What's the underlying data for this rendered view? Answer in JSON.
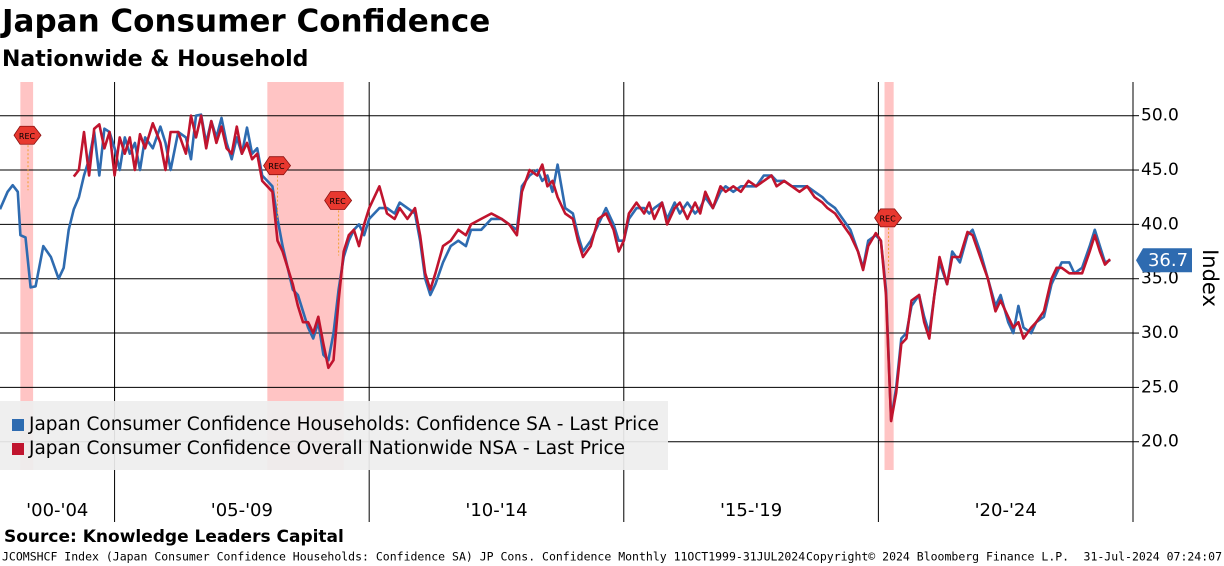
{
  "chart_data": {
    "type": "line",
    "title": "Japan Consumer Confidence",
    "subtitle": "Nationwide & Household",
    "y_axis_label": "Index",
    "source": "Source: Knowledge Leaders Capital",
    "footer_left": "JCOMSHCF Index (Japan Consumer Confidence Households: Confidence SA) JP Cons. Confidence  Monthly 11OCT1999-31JUL2024",
    "footer_center": "Copyright© 2024 Bloomberg Finance L.P.",
    "footer_right": "31-Jul-2024 07:24:07",
    "xlim": [
      2002.75,
      2025
    ],
    "ylim": [
      17.4,
      53.1
    ],
    "yticks": [
      {
        "value": 20,
        "label": "20.0"
      },
      {
        "value": 25,
        "label": "25.0"
      },
      {
        "value": 30,
        "label": "30.0"
      },
      {
        "value": 35,
        "label": "35.0"
      },
      {
        "value": 40,
        "label": "40.0"
      },
      {
        "value": 45,
        "label": "45.0"
      },
      {
        "value": 50,
        "label": "50.0"
      }
    ],
    "grid": true,
    "legend": "lower left",
    "periods": [
      {
        "label": "'00-'04",
        "start": 2000,
        "end": 2005
      },
      {
        "label": "'05-'09",
        "start": 2005,
        "end": 2010
      },
      {
        "label": "'10-'14",
        "start": 2010,
        "end": 2015
      },
      {
        "label": "'15-'19",
        "start": 2015,
        "end": 2020
      },
      {
        "label": "'20-'24",
        "start": 2020,
        "end": 2025
      }
    ],
    "recessions": [
      [
        2003.15,
        2003.4
      ],
      [
        2008.0,
        2009.5
      ],
      [
        2020.12,
        2020.3
      ]
    ],
    "recession_color": "#ffb0b0",
    "rec_label": "REC",
    "rec_flags": [
      {
        "x": 2003.3,
        "y": 48.2
      },
      {
        "x": 2008.2,
        "y": 45.4
      },
      {
        "x": 2009.4,
        "y": 42.2
      },
      {
        "x": 2020.2,
        "y": 40.6
      }
    ],
    "x": [
      2002.75,
      2002.9,
      2003.0,
      2003.1,
      2003.15,
      2003.25,
      2003.35,
      2003.45,
      2003.6,
      2003.75,
      2003.9,
      2004.0,
      2004.1,
      2004.2,
      2004.3,
      2004.4,
      2004.5,
      2004.6,
      2004.7,
      2004.8,
      2004.9,
      2005.0,
      2005.1,
      2005.2,
      2005.3,
      2005.4,
      2005.5,
      2005.6,
      2005.75,
      2005.9,
      2006.0,
      2006.1,
      2006.25,
      2006.4,
      2006.5,
      2006.6,
      2006.7,
      2006.8,
      2006.9,
      2007.0,
      2007.1,
      2007.2,
      2007.3,
      2007.4,
      2007.5,
      2007.6,
      2007.7,
      2007.8,
      2007.9,
      2008.0,
      2008.1,
      2008.2,
      2008.3,
      2008.4,
      2008.5,
      2008.6,
      2008.7,
      2008.8,
      2008.9,
      2009.0,
      2009.1,
      2009.2,
      2009.3,
      2009.4,
      2009.5,
      2009.6,
      2009.7,
      2009.8,
      2009.9,
      2010.0,
      2010.2,
      2010.35,
      2010.5,
      2010.6,
      2010.75,
      2010.9,
      2011.0,
      2011.1,
      2011.2,
      2011.3,
      2011.45,
      2011.6,
      2011.75,
      2011.9,
      2012.0,
      2012.2,
      2012.4,
      2012.6,
      2012.75,
      2012.9,
      2013.0,
      2013.15,
      2013.3,
      2013.4,
      2013.5,
      2013.6,
      2013.7,
      2013.85,
      2014.0,
      2014.1,
      2014.2,
      2014.35,
      2014.5,
      2014.65,
      2014.8,
      2014.9,
      2015.0,
      2015.1,
      2015.25,
      2015.4,
      2015.5,
      2015.6,
      2015.75,
      2015.85,
      2016.0,
      2016.1,
      2016.25,
      2016.4,
      2016.5,
      2016.6,
      2016.75,
      2016.9,
      2017.0,
      2017.15,
      2017.3,
      2017.45,
      2017.6,
      2017.75,
      2017.9,
      2018.0,
      2018.15,
      2018.3,
      2018.45,
      2018.6,
      2018.75,
      2018.9,
      2019.0,
      2019.15,
      2019.3,
      2019.45,
      2019.6,
      2019.7,
      2019.8,
      2019.95,
      2020.05,
      2020.15,
      2020.25,
      2020.35,
      2020.45,
      2020.55,
      2020.65,
      2020.8,
      2020.9,
      2021.0,
      2021.1,
      2021.2,
      2021.35,
      2021.45,
      2021.6,
      2021.75,
      2021.85,
      2022.0,
      2022.15,
      2022.3,
      2022.4,
      2022.55,
      2022.65,
      2022.75,
      2022.85,
      2023.0,
      2023.1,
      2023.25,
      2023.4,
      2023.5,
      2023.6,
      2023.75,
      2023.85,
      2024.0,
      2024.15,
      2024.25,
      2024.35,
      2024.45,
      2024.55
    ],
    "series": [
      {
        "name": "Japan Consumer Confidence Households: Confidence SA - Last Price",
        "color": "#2e6bb0",
        "values": [
          41.4,
          43.0,
          43.6,
          43.0,
          39.0,
          38.8,
          34.2,
          34.3,
          38.0,
          37.0,
          35.0,
          36.0,
          39.5,
          41.4,
          42.5,
          44.5,
          46.0,
          48.5,
          44.5,
          48.8,
          48.5,
          47.0,
          45.0,
          48.0,
          46.5,
          47.5,
          45.0,
          48.0,
          47.0,
          49.0,
          47.5,
          45.0,
          48.5,
          48.0,
          46.0,
          50.0,
          50.1,
          47.5,
          49.5,
          48.0,
          49.8,
          47.5,
          46.0,
          48.0,
          46.5,
          48.9,
          46.5,
          47.0,
          44.5,
          44.0,
          43.5,
          40.5,
          38.0,
          36.0,
          34.0,
          33.5,
          32.0,
          30.5,
          29.5,
          31.0,
          28.0,
          27.5,
          30.0,
          34.0,
          37.0,
          38.5,
          39.5,
          40.0,
          39.0,
          40.5,
          41.5,
          41.5,
          41.0,
          42.0,
          41.5,
          41.0,
          38.5,
          35.0,
          33.5,
          34.5,
          36.5,
          38.0,
          38.5,
          38.0,
          39.5,
          39.5,
          40.5,
          40.5,
          40.0,
          39.5,
          43.5,
          44.5,
          45.0,
          44.0,
          44.5,
          43.0,
          45.5,
          41.5,
          41.0,
          39.0,
          37.5,
          38.5,
          40.0,
          41.5,
          40.0,
          38.5,
          38.5,
          40.5,
          41.5,
          41.5,
          41.0,
          41.5,
          42.0,
          40.5,
          42.0,
          41.0,
          42.0,
          41.0,
          41.5,
          42.5,
          41.5,
          43.0,
          43.5,
          43.0,
          43.5,
          43.5,
          43.5,
          44.5,
          44.5,
          44.0,
          44.0,
          43.5,
          43.5,
          43.5,
          43.0,
          42.5,
          42.0,
          41.5,
          40.5,
          39.5,
          37.5,
          36.0,
          38.5,
          39.0,
          38.5,
          34.0,
          22.0,
          25.0,
          29.5,
          30.0,
          32.5,
          33.5,
          31.5,
          30.0,
          33.5,
          36.5,
          34.5,
          37.5,
          36.5,
          39.0,
          39.5,
          37.5,
          35.0,
          32.5,
          33.5,
          31.0,
          30.0,
          32.5,
          30.5,
          30.0,
          31.0,
          31.5,
          34.5,
          35.5,
          36.5,
          36.5,
          35.5,
          36.0,
          38.0,
          39.5,
          38.0,
          36.5,
          36.7
        ]
      },
      {
        "name": "Japan Consumer Confidence Overall Nationwide NSA - Last Price",
        "color": "#c0142e",
        "values": [
          null,
          null,
          null,
          null,
          null,
          null,
          null,
          null,
          null,
          null,
          null,
          null,
          null,
          44.4,
          45.0,
          48.5,
          44.5,
          48.8,
          49.2,
          47.0,
          48.5,
          44.5,
          48.0,
          46.5,
          48.0,
          45.0,
          48.3,
          47.0,
          49.3,
          47.5,
          45.0,
          48.5,
          48.5,
          46.5,
          50.0,
          48.0,
          50.0,
          47.0,
          49.5,
          47.5,
          49.0,
          47.0,
          46.5,
          49.0,
          46.5,
          47.5,
          46.0,
          46.5,
          44.0,
          43.5,
          43.0,
          38.5,
          37.5,
          36.0,
          34.5,
          32.5,
          31.0,
          31.0,
          30.0,
          31.5,
          29.0,
          26.8,
          27.5,
          33.0,
          37.5,
          39.0,
          39.5,
          38.0,
          40.0,
          41.5,
          43.5,
          41.0,
          40.5,
          41.5,
          40.5,
          41.5,
          39.0,
          35.5,
          34.0,
          35.5,
          38.0,
          38.5,
          39.5,
          39.0,
          40.0,
          40.5,
          41.0,
          40.5,
          40.0,
          39.0,
          43.0,
          45.0,
          44.5,
          45.5,
          43.5,
          44.0,
          42.5,
          41.0,
          40.5,
          38.5,
          37.0,
          38.0,
          40.5,
          41.0,
          39.5,
          37.5,
          38.5,
          41.0,
          42.0,
          41.0,
          42.0,
          40.5,
          42.0,
          40.0,
          41.5,
          42.0,
          40.5,
          42.0,
          41.0,
          43.0,
          41.5,
          43.5,
          43.0,
          43.5,
          43.0,
          44.0,
          43.5,
          44.0,
          44.5,
          43.5,
          44.0,
          43.5,
          43.0,
          43.5,
          42.5,
          42.0,
          41.5,
          41.0,
          40.0,
          39.0,
          37.5,
          35.8,
          38.0,
          39.2,
          38.5,
          33.5,
          21.9,
          24.5,
          29.0,
          29.5,
          33.0,
          33.5,
          31.0,
          29.5,
          33.5,
          37.0,
          34.5,
          37.0,
          37.0,
          39.3,
          39.0,
          37.0,
          35.0,
          32.0,
          33.0,
          31.5,
          30.5,
          31.0,
          29.5,
          30.5,
          31.0,
          32.0,
          35.0,
          36.0,
          36.0,
          35.5,
          35.5,
          35.5,
          37.5,
          39.0,
          37.5,
          36.3,
          36.8
        ]
      }
    ]
  }
}
